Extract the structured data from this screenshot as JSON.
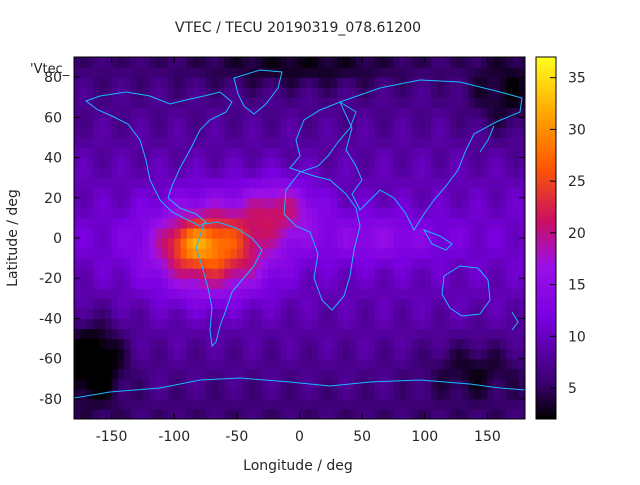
{
  "chart_data": {
    "type": "heatmap",
    "title": "VTEC / TECU 20190319_078.61200",
    "xlabel": "Longitude / deg",
    "ylabel": "Latitude / deg",
    "series_key_label": "'Vtec_",
    "xlim": [
      -180,
      180
    ],
    "ylim": [
      -90,
      90
    ],
    "xticks": [
      -150,
      -100,
      -50,
      0,
      50,
      100,
      150
    ],
    "yticks": [
      -80,
      -60,
      -40,
      -20,
      0,
      20,
      40,
      60,
      80
    ],
    "colorbar": {
      "range": [
        2,
        37
      ],
      "ticks": [
        5,
        10,
        15,
        20,
        25,
        30,
        35
      ],
      "colors": [
        "#000000",
        "#5a0096",
        "#8a00ff",
        "#cc0066",
        "#ff5a00",
        "#ffd200",
        "#ffff20"
      ]
    },
    "coastline_color": "#1ab8ff",
    "grid": false
  }
}
